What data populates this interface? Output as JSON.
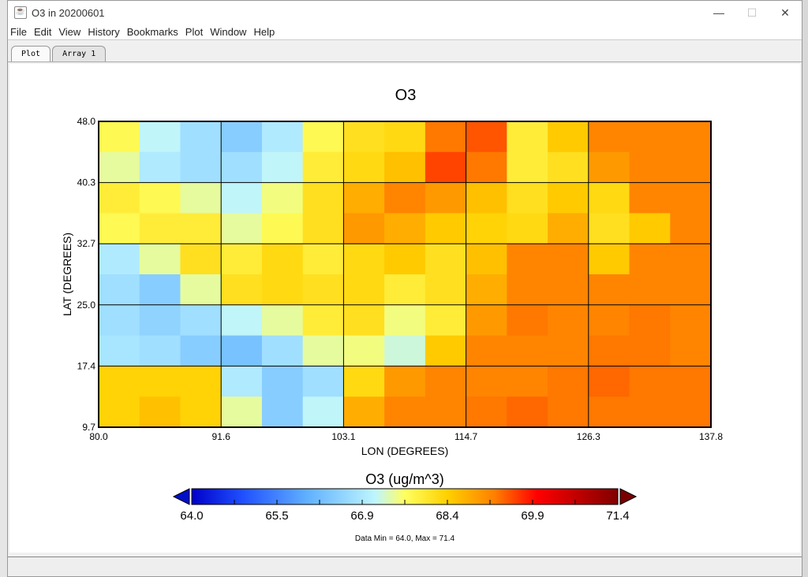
{
  "window": {
    "title": "O3 in 20200601",
    "controls": [
      "—",
      "☐",
      "✕"
    ]
  },
  "menu": [
    "File",
    "Edit",
    "View",
    "History",
    "Bookmarks",
    "Plot",
    "Window",
    "Help"
  ],
  "tabs": [
    {
      "label": "Plot",
      "active": true
    },
    {
      "label": "Array 1",
      "active": false
    }
  ],
  "footer": "Data Min = 64.0, Max = 71.4",
  "chart_data": {
    "type": "heatmap",
    "title": "O3",
    "xlabel": "LON (DEGREES)",
    "ylabel": "LAT (DEGREES)",
    "xlim": [
      80.0,
      137.8
    ],
    "ylim": [
      9.7,
      48.0
    ],
    "xticks": [
      "80.0",
      "91.6",
      "103.1",
      "114.7",
      "126.3",
      "137.8"
    ],
    "yticks": [
      "48.0",
      "40.3",
      "32.7",
      "25.0",
      "17.4",
      "9.7"
    ],
    "grid": true,
    "colorbar": {
      "title": "O3 (ug/m^3)",
      "min": 64.0,
      "max": 71.4,
      "ticks": [
        "64.0",
        "65.5",
        "66.9",
        "68.4",
        "69.9",
        "71.4"
      ],
      "extend": "both"
    },
    "grid_values_rows_north_to_south": [
      [
        67.8,
        67.2,
        66.8,
        66.5,
        67.0,
        67.8,
        68.2,
        68.3,
        69.3,
        69.5,
        68.0,
        68.5,
        69.2,
        69.2,
        69.2
      ],
      [
        67.5,
        67.0,
        66.8,
        66.8,
        67.2,
        68.0,
        68.3,
        68.6,
        69.6,
        69.3,
        68.0,
        68.2,
        69.0,
        69.2,
        69.2
      ],
      [
        68.0,
        67.8,
        67.5,
        67.2,
        67.6,
        68.2,
        68.8,
        69.2,
        69.0,
        68.6,
        68.2,
        68.5,
        68.3,
        69.2,
        69.2
      ],
      [
        67.8,
        68.0,
        68.0,
        67.5,
        67.8,
        68.2,
        69.0,
        68.8,
        68.5,
        68.4,
        68.3,
        68.8,
        68.2,
        68.5,
        69.2
      ],
      [
        67.0,
        67.5,
        68.2,
        68.0,
        68.3,
        68.0,
        68.3,
        68.5,
        68.2,
        68.6,
        69.2,
        69.2,
        68.5,
        69.2,
        69.2
      ],
      [
        66.8,
        66.5,
        67.5,
        68.2,
        68.3,
        68.2,
        68.3,
        68.0,
        68.2,
        68.8,
        69.2,
        69.2,
        69.2,
        69.2,
        69.2
      ],
      [
        66.8,
        66.6,
        66.8,
        67.2,
        67.5,
        68.0,
        68.2,
        67.6,
        68.0,
        69.0,
        69.3,
        69.2,
        69.2,
        69.3,
        69.2
      ],
      [
        66.9,
        66.8,
        66.5,
        66.3,
        66.8,
        67.5,
        67.6,
        67.3,
        68.5,
        69.2,
        69.2,
        69.2,
        69.3,
        69.3,
        69.2
      ],
      [
        68.4,
        68.4,
        68.4,
        67.0,
        66.5,
        66.8,
        68.3,
        69.0,
        69.2,
        69.2,
        69.2,
        69.3,
        69.4,
        69.3,
        69.3
      ],
      [
        68.4,
        68.6,
        68.4,
        67.5,
        66.5,
        67.2,
        68.8,
        69.2,
        69.2,
        69.3,
        69.4,
        69.3,
        69.3,
        69.3,
        69.3
      ]
    ]
  }
}
